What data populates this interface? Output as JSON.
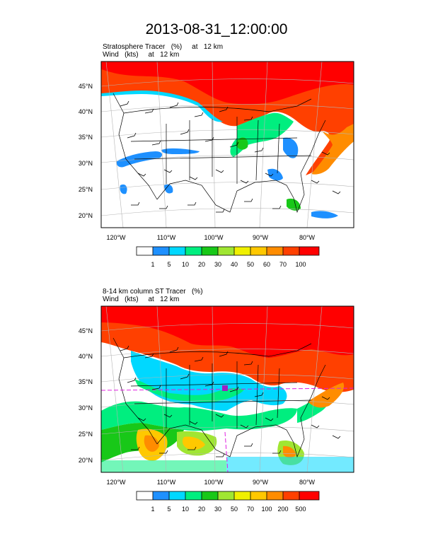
{
  "main_title": "2013-08-31_12:00:00",
  "panels": [
    {
      "title1": "Stratosphere Tracer   (%)     at   12 km",
      "title2": "Wind   (kts)     at   12 km",
      "lat_labels": [
        "45°N",
        "40°N",
        "35°N",
        "30°N",
        "25°N",
        "20°N"
      ],
      "lon_labels": [
        "120°W",
        "110°W",
        "100°W",
        "90°W",
        "80°W"
      ],
      "colorbar_labels": [
        "1",
        "5",
        "10",
        "20",
        "30",
        "40",
        "50",
        "60",
        "70",
        "100"
      ]
    },
    {
      "title1": "8-14 km column ST Tracer   (%)",
      "title2": "Wind   (kts)     at   12 km",
      "lat_labels": [
        "45°N",
        "40°N",
        "35°N",
        "30°N",
        "25°N",
        "20°N"
      ],
      "lon_labels": [
        "120°W",
        "110°W",
        "100°W",
        "90°W",
        "80°W"
      ],
      "colorbar_labels": [
        "1",
        "5",
        "10",
        "20",
        "30",
        "50",
        "70",
        "100",
        "200",
        "500"
      ]
    }
  ],
  "colorbar_colors": [
    "#ffffff",
    "#1e90ff",
    "#00d8ff",
    "#00ee7f",
    "#18c818",
    "#a0e632",
    "#f0f000",
    "#ffc800",
    "#ff8c00",
    "#ff4000",
    "#ff0000"
  ],
  "map_colors": {
    "land": "#ffffff",
    "boundary": "#000000",
    "grid": "#b4b4b4",
    "marker_line": "#e020e0"
  }
}
